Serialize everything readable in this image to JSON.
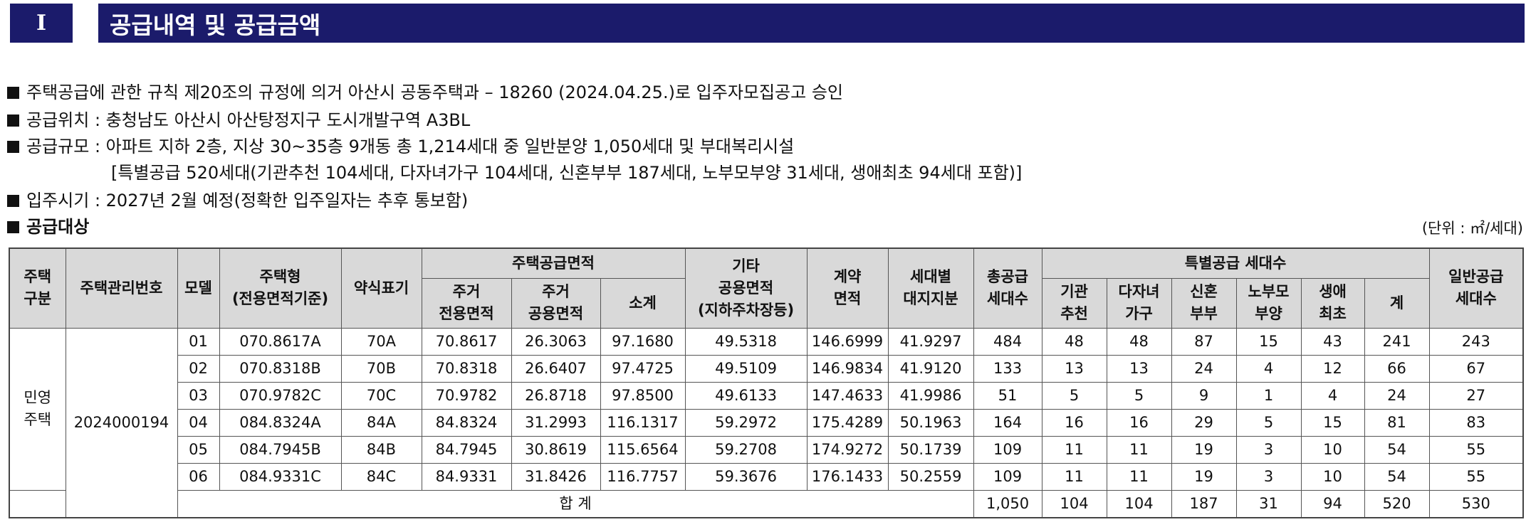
{
  "header": {
    "section_number": "I",
    "title": "공급내역 및 공급금액"
  },
  "intro": {
    "line1": "주택공급에 관한 규칙 제20조의 규정에 의거 아산시 공동주택과 – 18260 (2024.04.25.)로 입주자모집공고 승인",
    "line2": "공급위치 : 충청남도 아산시 아산탕정지구 도시개발구역 A3BL",
    "line3": "공급규모 : 아파트 지하 2층, 지상 30~35층 9개동 총 1,214세대 중 일반분양 1,050세대 및 부대복리시설",
    "line3_sub": "[특별공급 520세대(기관추천 104세대, 다자녀가구 104세대, 신혼부부 187세대, 노부모부양 31세대, 생애최초 94세대 포함)]",
    "line4": "입주시기 : 2027년 2월 예정(정확한 입주일자는 추후 통보함)",
    "line5": "공급대상",
    "unit": "(단위 : ㎡/세대)"
  },
  "table": {
    "headers": {
      "housing_type_1": "주택",
      "housing_type_2": "구분",
      "mgmt_no": "주택관리번호",
      "model": "모델",
      "house_type_1": "주택형",
      "house_type_2": "(전용면적기준)",
      "abbr": "약식표기",
      "supply_area": "주택공급면적",
      "excl_1": "주거",
      "excl_2": "전용면적",
      "common_1": "주거",
      "common_2": "공용면적",
      "subtotal": "소계",
      "other_1": "기타",
      "other_2": "공용면적",
      "other_3": "(지하주차장등)",
      "contract_1": "계약",
      "contract_2": "면적",
      "land_1": "세대별",
      "land_2": "대지지분",
      "total_1": "총공급",
      "total_2": "세대수",
      "special": "특별공급 세대수",
      "inst_1": "기관",
      "inst_2": "추천",
      "multi_1": "다자녀",
      "multi_2": "가구",
      "newlywed_1": "신혼",
      "newlywed_2": "부부",
      "parents_1": "노부모",
      "parents_2": "부양",
      "first_1": "생애",
      "first_2": "최초",
      "sp_total": "계",
      "general_1": "일반공급",
      "general_2": "세대수"
    },
    "group": {
      "type_1": "민영",
      "type_2": "주택",
      "mgmt_no": "2024000194"
    },
    "rows": [
      {
        "model": "01",
        "house_type": "070.8617A",
        "abbr": "70A",
        "excl": "70.8617",
        "common": "26.3063",
        "subtotal": "97.1680",
        "other": "49.5318",
        "contract": "146.6999",
        "land": "41.9297",
        "total": "484",
        "inst": "48",
        "multi": "48",
        "newlywed": "87",
        "parents": "15",
        "first": "43",
        "sp_total": "241",
        "general": "243"
      },
      {
        "model": "02",
        "house_type": "070.8318B",
        "abbr": "70B",
        "excl": "70.8318",
        "common": "26.6407",
        "subtotal": "97.4725",
        "other": "49.5109",
        "contract": "146.9834",
        "land": "41.9120",
        "total": "133",
        "inst": "13",
        "multi": "13",
        "newlywed": "24",
        "parents": "4",
        "first": "12",
        "sp_total": "66",
        "general": "67"
      },
      {
        "model": "03",
        "house_type": "070.9782C",
        "abbr": "70C",
        "excl": "70.9782",
        "common": "26.8718",
        "subtotal": "97.8500",
        "other": "49.6133",
        "contract": "147.4633",
        "land": "41.9986",
        "total": "51",
        "inst": "5",
        "multi": "5",
        "newlywed": "9",
        "parents": "1",
        "first": "4",
        "sp_total": "24",
        "general": "27"
      },
      {
        "model": "04",
        "house_type": "084.8324A",
        "abbr": "84A",
        "excl": "84.8324",
        "common": "31.2993",
        "subtotal": "116.1317",
        "other": "59.2972",
        "contract": "175.4289",
        "land": "50.1963",
        "total": "164",
        "inst": "16",
        "multi": "16",
        "newlywed": "29",
        "parents": "5",
        "first": "15",
        "sp_total": "81",
        "general": "83"
      },
      {
        "model": "05",
        "house_type": "084.7945B",
        "abbr": "84B",
        "excl": "84.7945",
        "common": "30.8619",
        "subtotal": "115.6564",
        "other": "59.2708",
        "contract": "174.9272",
        "land": "50.1739",
        "total": "109",
        "inst": "11",
        "multi": "11",
        "newlywed": "19",
        "parents": "3",
        "first": "10",
        "sp_total": "54",
        "general": "55"
      },
      {
        "model": "06",
        "house_type": "084.9331C",
        "abbr": "84C",
        "excl": "84.9331",
        "common": "31.8426",
        "subtotal": "116.7757",
        "other": "59.3676",
        "contract": "176.1433",
        "land": "50.2559",
        "total": "109",
        "inst": "11",
        "multi": "11",
        "newlywed": "19",
        "parents": "3",
        "first": "10",
        "sp_total": "54",
        "general": "55"
      }
    ],
    "sum": {
      "label": "합 계",
      "total": "1,050",
      "inst": "104",
      "multi": "104",
      "newlywed": "187",
      "parents": "31",
      "first": "94",
      "sp_total": "520",
      "general": "530"
    }
  }
}
